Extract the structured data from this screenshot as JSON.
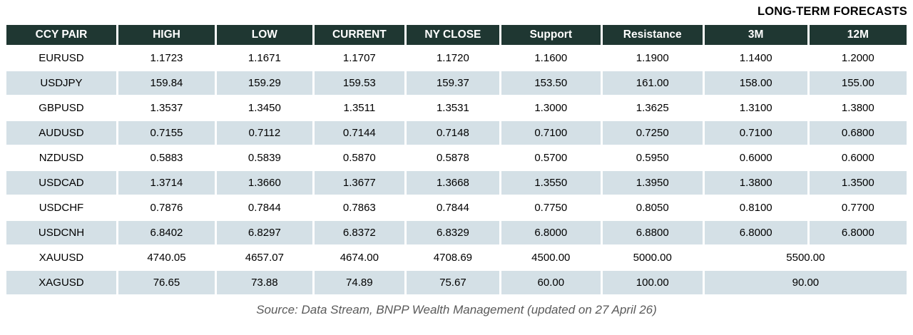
{
  "title": "LONG-TERM FORECASTS",
  "source_note": "Source: Data Stream, BNPP Wealth Management (updated on 27 April 26)",
  "colors": {
    "header_bg": "#1F3732",
    "header_text": "#FFFFFF",
    "row_alt_bg": "#D4E0E6",
    "row_bg": "#FFFFFF",
    "text": "#000000",
    "source_text": "#5A5A5A"
  },
  "table": {
    "columns": [
      "CCY PAIR",
      "HIGH",
      "LOW",
      "CURRENT",
      "NY CLOSE",
      "Support",
      "Resistance",
      "3M",
      "12M"
    ],
    "column_widths_pct": [
      12.2,
      10.7,
      10.6,
      10.0,
      10.3,
      11.0,
      11.1,
      11.4,
      10.8
    ],
    "rows": [
      {
        "cells": [
          "EURUSD",
          "1.1723",
          "1.1671",
          "1.1707",
          "1.1720",
          "1.1600",
          "1.1900",
          "1.1400",
          "1.2000"
        ]
      },
      {
        "cells": [
          "USDJPY",
          "159.84",
          "159.29",
          "159.53",
          "159.37",
          "153.50",
          "161.00",
          "158.00",
          "155.00"
        ]
      },
      {
        "cells": [
          "GBPUSD",
          "1.3537",
          "1.3450",
          "1.3511",
          "1.3531",
          "1.3000",
          "1.3625",
          "1.3100",
          "1.3800"
        ]
      },
      {
        "cells": [
          "AUDUSD",
          "0.7155",
          "0.7112",
          "0.7144",
          "0.7148",
          "0.7100",
          "0.7250",
          "0.7100",
          "0.6800"
        ]
      },
      {
        "cells": [
          "NZDUSD",
          "0.5883",
          "0.5839",
          "0.5870",
          "0.5878",
          "0.5700",
          "0.5950",
          "0.6000",
          "0.6000"
        ]
      },
      {
        "cells": [
          "USDCAD",
          "1.3714",
          "1.3660",
          "1.3677",
          "1.3668",
          "1.3550",
          "1.3950",
          "1.3800",
          "1.3500"
        ]
      },
      {
        "cells": [
          "USDCHF",
          "0.7876",
          "0.7844",
          "0.7863",
          "0.7844",
          "0.7750",
          "0.8050",
          "0.8100",
          "0.7700"
        ]
      },
      {
        "cells": [
          "USDCNH",
          "6.8402",
          "6.8297",
          "6.8372",
          "6.8329",
          "6.8000",
          "6.8800",
          "6.8000",
          "6.8000"
        ]
      },
      {
        "cells": [
          "XAUUSD",
          "4740.05",
          "4657.07",
          "4674.00",
          "4708.69",
          "4500.00",
          "5000.00",
          {
            "text": "5500.00",
            "colspan": 2
          }
        ]
      },
      {
        "cells": [
          "XAGUSD",
          "76.65",
          "73.88",
          "74.89",
          "75.67",
          "60.00",
          "100.00",
          {
            "text": "90.00",
            "colspan": 2
          }
        ]
      }
    ]
  }
}
